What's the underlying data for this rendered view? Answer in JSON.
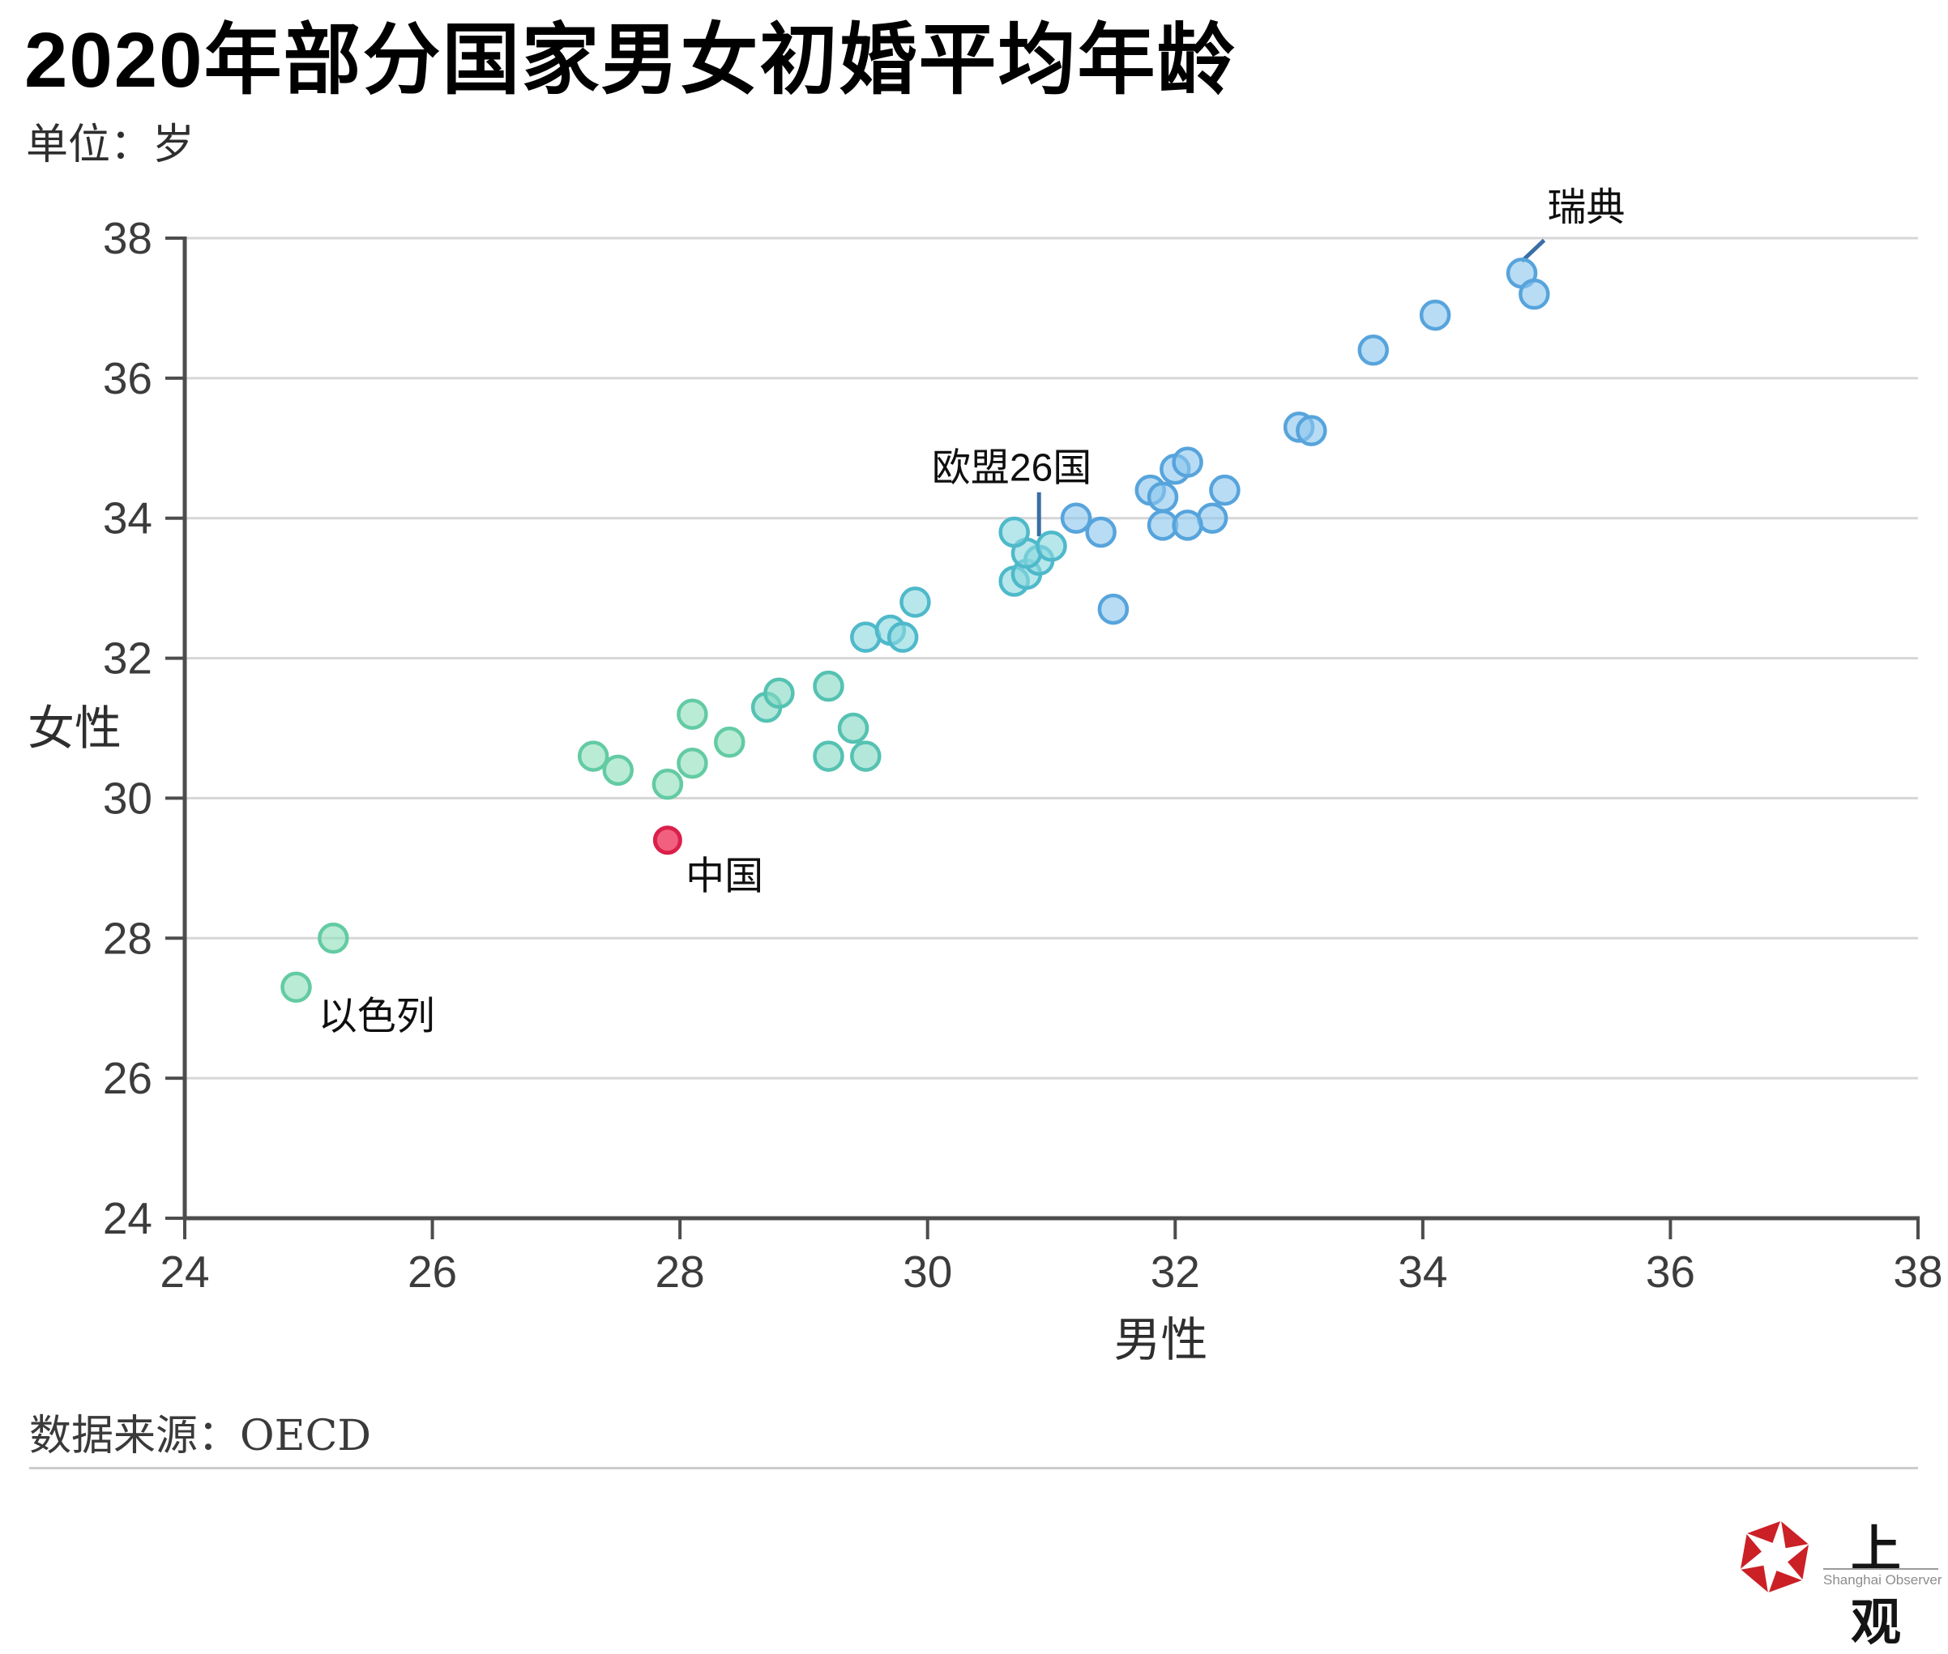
{
  "title": "2020年部分国家男女初婚平均年龄",
  "unit_label": "单位：岁",
  "source_label": "数据来源：OECD",
  "logo": {
    "cn": "上观",
    "en": "Shanghai Observer",
    "icon": "red-aperture-hexagon",
    "icon_color": "#CB2026"
  },
  "colors": {
    "grid": "#D6D6D6",
    "axis": "#4D4D4D",
    "tick_text": "#3C3C3C",
    "axis_title_text": "#2E2E2E",
    "annotation_text": "#0F0F0F",
    "leader_line": "#3A6EA5"
  },
  "palette": {
    "green": {
      "fill": "#8FDFBB",
      "stroke": "#63CBA4"
    },
    "teal_green": {
      "fill": "#85D9C4",
      "stroke": "#55C2B2"
    },
    "teal": {
      "fill": "#8BD8DF",
      "stroke": "#4EB9CA"
    },
    "blue": {
      "fill": "#8CC6EE",
      "stroke": "#57A4DC"
    },
    "red": {
      "fill": "#EE3E63",
      "stroke": "#DB1F4B"
    }
  },
  "chart_data": {
    "type": "scatter",
    "xlabel": "男性",
    "ylabel": "女性",
    "x_range": [
      24,
      38
    ],
    "y_range": [
      24,
      38
    ],
    "x_ticks": [
      24,
      26,
      28,
      30,
      32,
      34,
      36,
      38
    ],
    "y_ticks": [
      24,
      26,
      28,
      30,
      32,
      34,
      36,
      38
    ],
    "grid": "horizontal-only",
    "points": [
      {
        "x": 24.9,
        "y": 27.3,
        "c": "green",
        "country": "以色列"
      },
      {
        "x": 25.2,
        "y": 28.0,
        "c": "green"
      },
      {
        "x": 27.3,
        "y": 30.6,
        "c": "green"
      },
      {
        "x": 27.5,
        "y": 30.4,
        "c": "green"
      },
      {
        "x": 27.9,
        "y": 30.2,
        "c": "green"
      },
      {
        "x": 28.1,
        "y": 31.2,
        "c": "green"
      },
      {
        "x": 28.1,
        "y": 30.5,
        "c": "green"
      },
      {
        "x": 28.4,
        "y": 30.8,
        "c": "green"
      },
      {
        "x": 28.7,
        "y": 31.3,
        "c": "teal_green"
      },
      {
        "x": 28.8,
        "y": 31.5,
        "c": "teal_green"
      },
      {
        "x": 29.2,
        "y": 31.6,
        "c": "teal_green"
      },
      {
        "x": 29.4,
        "y": 31.0,
        "c": "teal_green"
      },
      {
        "x": 29.2,
        "y": 30.6,
        "c": "teal_green"
      },
      {
        "x": 29.5,
        "y": 30.6,
        "c": "teal_green"
      },
      {
        "x": 29.5,
        "y": 32.3,
        "c": "teal"
      },
      {
        "x": 29.7,
        "y": 32.4,
        "c": "teal"
      },
      {
        "x": 29.8,
        "y": 32.3,
        "c": "teal"
      },
      {
        "x": 29.9,
        "y": 32.8,
        "c": "teal"
      },
      {
        "x": 30.7,
        "y": 33.1,
        "c": "teal"
      },
      {
        "x": 30.8,
        "y": 33.2,
        "c": "teal"
      },
      {
        "x": 30.9,
        "y": 33.4,
        "c": "teal"
      },
      {
        "x": 30.8,
        "y": 33.5,
        "c": "teal",
        "country": "欧盟26国"
      },
      {
        "x": 31.0,
        "y": 33.6,
        "c": "teal"
      },
      {
        "x": 30.7,
        "y": 33.8,
        "c": "teal"
      },
      {
        "x": 31.2,
        "y": 34.0,
        "c": "blue"
      },
      {
        "x": 31.4,
        "y": 33.8,
        "c": "blue"
      },
      {
        "x": 31.5,
        "y": 32.7,
        "c": "blue"
      },
      {
        "x": 31.8,
        "y": 34.4,
        "c": "blue"
      },
      {
        "x": 31.9,
        "y": 34.3,
        "c": "blue"
      },
      {
        "x": 32.0,
        "y": 34.7,
        "c": "blue"
      },
      {
        "x": 32.1,
        "y": 34.8,
        "c": "blue"
      },
      {
        "x": 32.4,
        "y": 34.4,
        "c": "blue"
      },
      {
        "x": 32.3,
        "y": 34.0,
        "c": "blue"
      },
      {
        "x": 31.9,
        "y": 33.9,
        "c": "blue"
      },
      {
        "x": 32.1,
        "y": 33.9,
        "c": "blue"
      },
      {
        "x": 33.0,
        "y": 35.3,
        "c": "blue"
      },
      {
        "x": 33.1,
        "y": 35.25,
        "c": "blue"
      },
      {
        "x": 33.6,
        "y": 36.4,
        "c": "blue"
      },
      {
        "x": 34.1,
        "y": 36.9,
        "c": "blue"
      },
      {
        "x": 34.8,
        "y": 37.5,
        "c": "blue",
        "country": "瑞典"
      },
      {
        "x": 34.9,
        "y": 37.2,
        "c": "blue"
      },
      {
        "x": 27.9,
        "y": 29.4,
        "c": "red",
        "country": "中国"
      }
    ],
    "annotations": [
      {
        "id": "sweden",
        "text": "瑞典",
        "x": 35.32,
        "y": 38.45,
        "leader": {
          "x1": 34.98,
          "y1": 37.97,
          "x2": 34.8,
          "y2": 37.67
        }
      },
      {
        "id": "eu26",
        "text": "欧盟26国",
        "x": 30.68,
        "y": 34.73,
        "leader": {
          "x1": 30.9,
          "y1": 34.37,
          "x2": 30.9,
          "y2": 33.74
        }
      },
      {
        "id": "china",
        "text": "中国",
        "x": 28.36,
        "y": 28.9,
        "leader": null
      },
      {
        "id": "israel",
        "text": "以色列",
        "x": 25.55,
        "y": 26.9,
        "leader": null
      }
    ]
  }
}
